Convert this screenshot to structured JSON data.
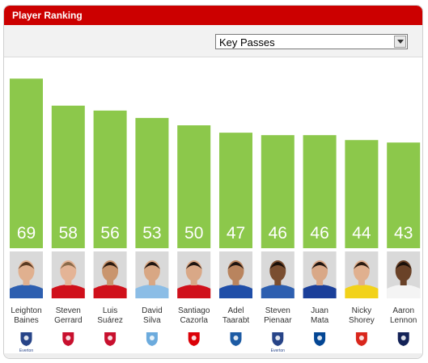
{
  "header": {
    "title": "Player Ranking"
  },
  "filter": {
    "selected": "Key Passes"
  },
  "colors": {
    "header": "#cc0000",
    "bar": "#8cc84b"
  },
  "chart_data": {
    "type": "bar",
    "ylim": [
      0,
      75
    ],
    "grid": false,
    "categories": [
      [
        "Leighton",
        "Baines"
      ],
      [
        "Steven",
        "Gerrard"
      ],
      [
        "Luis",
        "Suárez"
      ],
      [
        "David",
        "Silva"
      ],
      [
        "Santiago",
        "Cazorla"
      ],
      [
        "Adel",
        "Taarabt"
      ],
      [
        "Steven",
        "Pienaar"
      ],
      [
        "Juan",
        "Mata"
      ],
      [
        "Nicky",
        "Shorey"
      ],
      [
        "Aaron",
        "Lennon"
      ]
    ],
    "values": [
      69,
      58,
      56,
      53,
      50,
      47,
      46,
      46,
      44,
      43
    ]
  },
  "players": [
    {
      "kit": "#2d5fb0",
      "skin": "#e0b08f",
      "hair": "#5a3a22",
      "crest": "everton-crest-icon",
      "crest_color": "#274488",
      "crest_text": "Everton"
    },
    {
      "kit": "#d0101b",
      "skin": "#e4b496",
      "hair": "#8a6a4a",
      "crest": "liverpool-crest-icon",
      "crest_color": "#c8102e",
      "crest_text": ""
    },
    {
      "kit": "#d0101b",
      "skin": "#c9956e",
      "hair": "#2a1a10",
      "crest": "liverpool-crest-icon",
      "crest_color": "#c8102e",
      "crest_text": ""
    },
    {
      "kit": "#8bbde6",
      "skin": "#d8a784",
      "hair": "#1e1410",
      "crest": "man-city-crest-icon",
      "crest_color": "#6cabdd",
      "crest_text": ""
    },
    {
      "kit": "#d0101b",
      "skin": "#d9a887",
      "hair": "#1e1410",
      "crest": "arsenal-crest-icon",
      "crest_color": "#db0007",
      "crest_text": ""
    },
    {
      "kit": "#1f4ea8",
      "skin": "#b9845e",
      "hair": "#1e1410",
      "crest": "qpr-crest-icon",
      "crest_color": "#1d5ba4",
      "crest_text": ""
    },
    {
      "kit": "#2d5fb0",
      "skin": "#7a4e30",
      "hair": "#1a100a",
      "crest": "everton-crest-icon",
      "crest_color": "#274488",
      "crest_text": "Everton"
    },
    {
      "kit": "#1a3f9a",
      "skin": "#d9a887",
      "hair": "#1e1410",
      "crest": "chelsea-crest-icon",
      "crest_color": "#034694",
      "crest_text": ""
    },
    {
      "kit": "#f2d21a",
      "skin": "#e0b08f",
      "hair": "#2a1a10",
      "crest": "reading-crest-icon",
      "crest_color": "#d9261c",
      "crest_text": ""
    },
    {
      "kit": "#f4f4f4",
      "skin": "#6a4228",
      "hair": "#1a100a",
      "crest": "tottenham-crest-icon",
      "crest_color": "#132257",
      "crest_text": ""
    }
  ]
}
